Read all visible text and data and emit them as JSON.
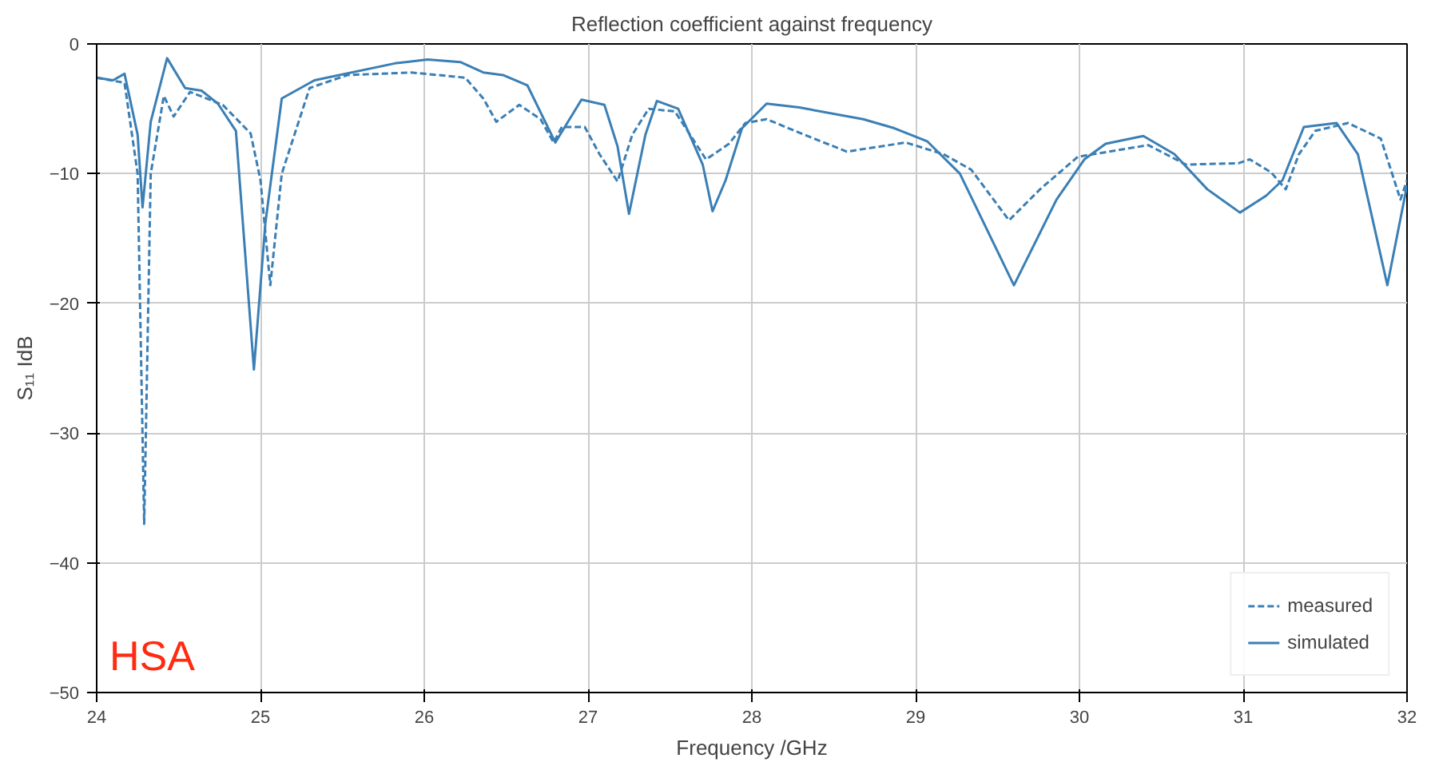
{
  "chart_data": {
    "type": "line",
    "title": "Reflection coefficient against frequency",
    "xlabel": "Frequency /GHz",
    "ylabel": "S₁₁ IdB",
    "xlim": [
      24,
      32
    ],
    "ylim": [
      -50,
      0
    ],
    "xticks": [
      24,
      25,
      26,
      27,
      28,
      29,
      30,
      31,
      32
    ],
    "yticks": [
      -50,
      -40,
      -30,
      -20,
      -10,
      0
    ],
    "grid": true,
    "legend": "bottom right",
    "annotations": [
      "HSA"
    ],
    "series": [
      {
        "name": "measured",
        "color": "#3a7fb5",
        "line_style": "dashed",
        "x": [
          24.0,
          24.17,
          24.25,
          24.29,
          24.33,
          24.41,
          24.47,
          24.57,
          24.77,
          24.94,
          25.0,
          25.06,
          25.13,
          25.3,
          25.53,
          25.92,
          26.25,
          26.36,
          26.44,
          26.58,
          26.71,
          26.79,
          26.84,
          26.98,
          27.07,
          27.18,
          27.27,
          27.37,
          27.53,
          27.72,
          27.86,
          27.96,
          28.09,
          28.32,
          28.58,
          28.94,
          29.17,
          29.34,
          29.57,
          29.76,
          29.99,
          30.42,
          30.65,
          30.97,
          31.04,
          31.17,
          31.26,
          31.34,
          31.44,
          31.64,
          31.84,
          31.96,
          32.0
        ],
        "values": [
          -2.6,
          -3.0,
          -10,
          -37,
          -10,
          -4.0,
          -5.6,
          -3.7,
          -4.7,
          -6.9,
          -10.5,
          -18.6,
          -10,
          -3.4,
          -2.4,
          -2.2,
          -2.6,
          -4.2,
          -6.0,
          -4.7,
          -5.8,
          -7.6,
          -6.4,
          -6.4,
          -8.5,
          -10.6,
          -7,
          -5,
          -5.2,
          -8.9,
          -7.7,
          -6.1,
          -5.8,
          -7,
          -8.3,
          -7.6,
          -8.5,
          -9.7,
          -13.6,
          -11.2,
          -8.7,
          -7.8,
          -9.3,
          -9.2,
          -8.9,
          -9.9,
          -11.2,
          -8.5,
          -6.7,
          -6.1,
          -7.3,
          -12,
          -10.5
        ]
      },
      {
        "name": "simulated",
        "color": "#3a7fb5",
        "line_style": "solid",
        "x": [
          24.0,
          24.1,
          24.17,
          24.25,
          24.28,
          24.33,
          24.43,
          24.54,
          24.64,
          24.74,
          24.85,
          24.96,
          25.03,
          25.13,
          25.33,
          25.82,
          26.02,
          26.22,
          26.36,
          26.48,
          26.63,
          26.8,
          26.96,
          27.1,
          27.18,
          27.25,
          27.35,
          27.42,
          27.55,
          27.7,
          27.76,
          27.84,
          27.94,
          28.09,
          28.29,
          28.68,
          28.87,
          29.07,
          29.27,
          29.6,
          29.86,
          30.03,
          30.16,
          30.39,
          30.58,
          30.78,
          30.98,
          31.14,
          31.24,
          31.37,
          31.57,
          31.7,
          31.88,
          32.0
        ],
        "values": [
          -2.6,
          -2.8,
          -2.3,
          -7,
          -12.6,
          -6,
          -1.1,
          -3.4,
          -3.6,
          -4.6,
          -6.7,
          -25.1,
          -13.8,
          -4.2,
          -2.8,
          -1.5,
          -1.2,
          -1.4,
          -2.2,
          -2.4,
          -3.2,
          -7.6,
          -4.3,
          -4.7,
          -7.9,
          -13.1,
          -7,
          -4.4,
          -5,
          -9.3,
          -12.9,
          -10.5,
          -6.5,
          -4.6,
          -4.9,
          -5.8,
          -6.5,
          -7.5,
          -10,
          -18.6,
          -12,
          -8.9,
          -7.7,
          -7.1,
          -8.5,
          -11.2,
          -13,
          -11.7,
          -10.5,
          -6.4,
          -6.1,
          -8.5,
          -18.6,
          -10.9
        ]
      }
    ]
  }
}
